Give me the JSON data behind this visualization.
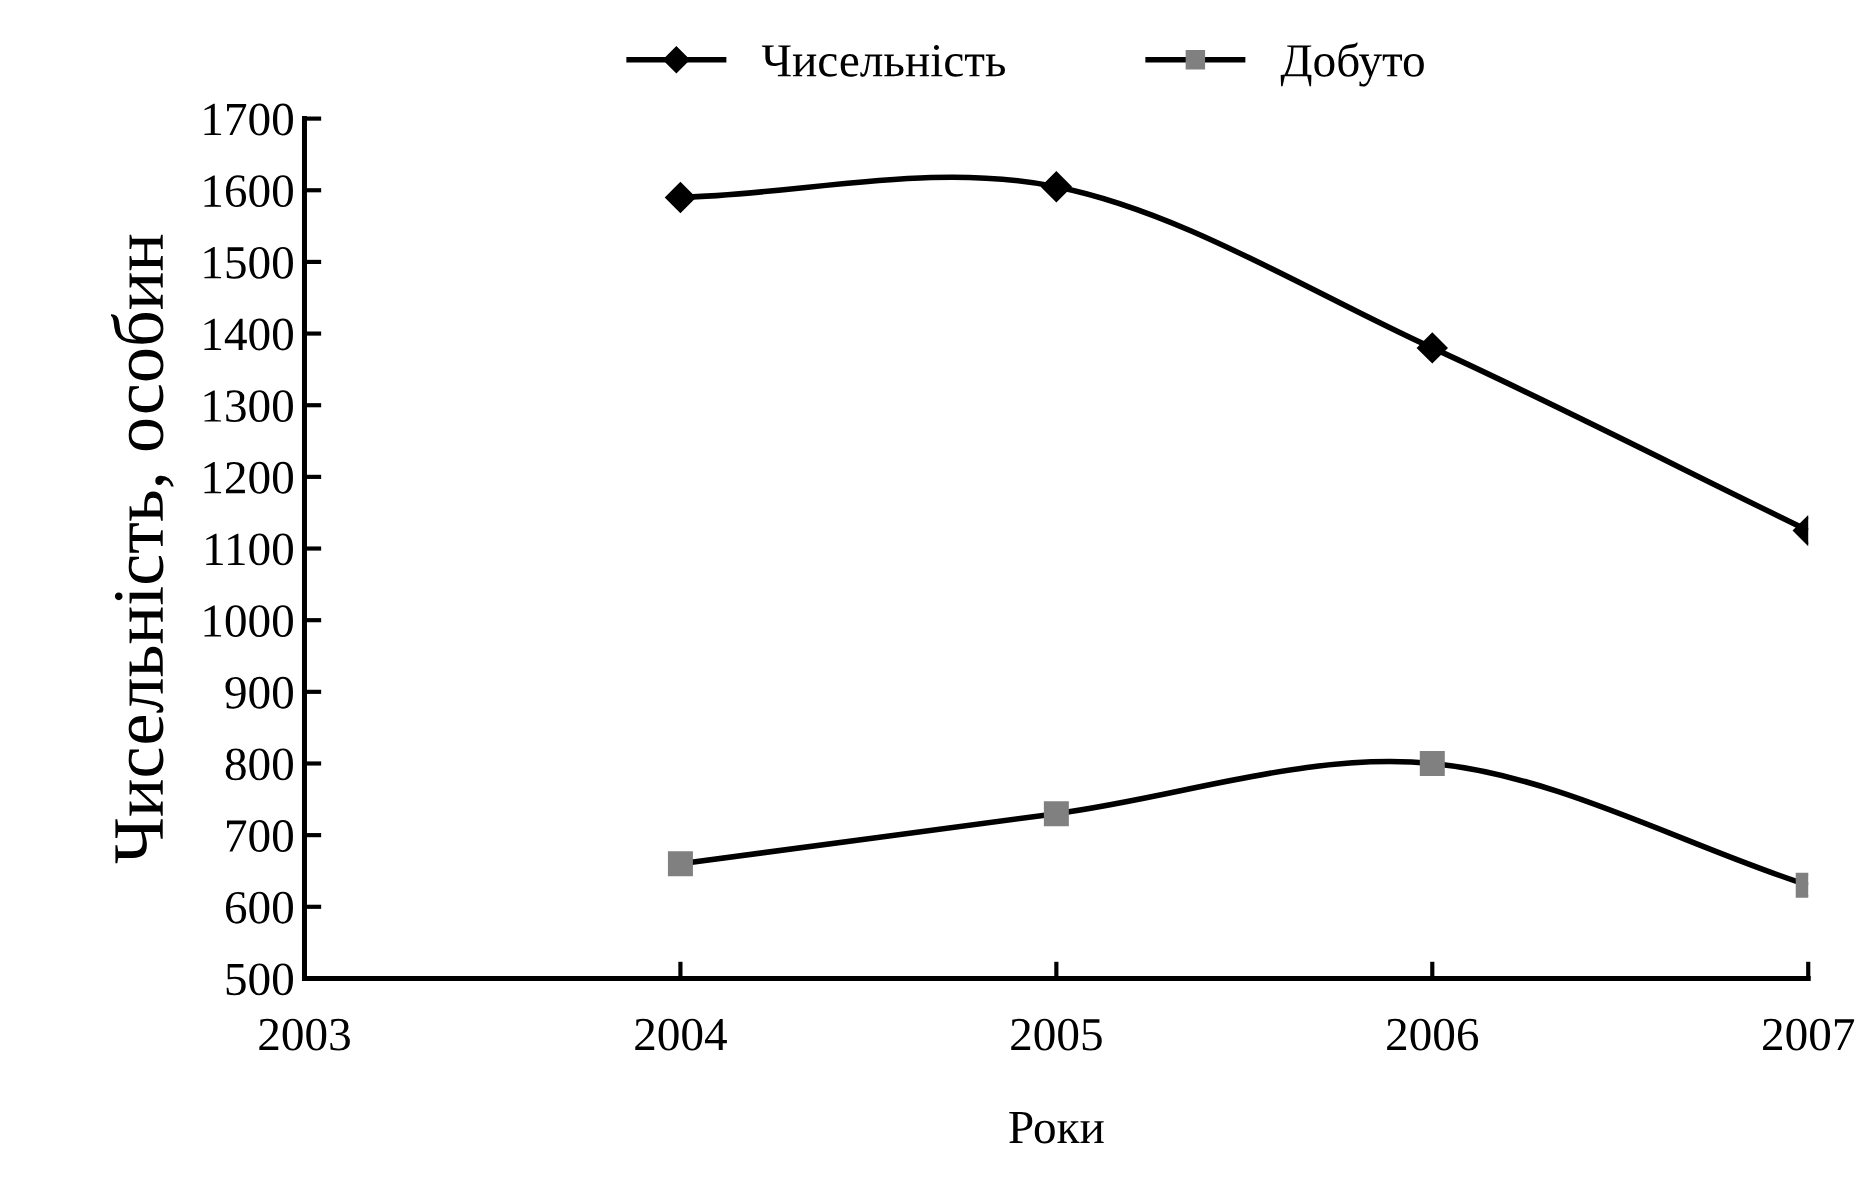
{
  "chart_data": {
    "type": "line",
    "xlabel": "Роки",
    "ylabel": "Чисельність, особин",
    "x": [
      2004,
      2005,
      2006,
      2007
    ],
    "series": [
      {
        "name": "Чисельність",
        "color": "#000000",
        "marker": "diamond",
        "values": [
          1590,
          1605,
          1380,
          1125
        ]
      },
      {
        "name": "Добуто",
        "color": "#808080",
        "marker": "square",
        "values": [
          660,
          730,
          800,
          630
        ]
      }
    ],
    "xlim": [
      2003,
      2007
    ],
    "xticks": [
      2003,
      2004,
      2005,
      2006,
      2007
    ],
    "ylim": [
      500,
      1700
    ],
    "yticks": [
      500,
      600,
      700,
      800,
      900,
      1000,
      1100,
      1200,
      1300,
      1400,
      1500,
      1600,
      1700
    ],
    "grid": false,
    "legend": "top",
    "line_style": "solid"
  }
}
